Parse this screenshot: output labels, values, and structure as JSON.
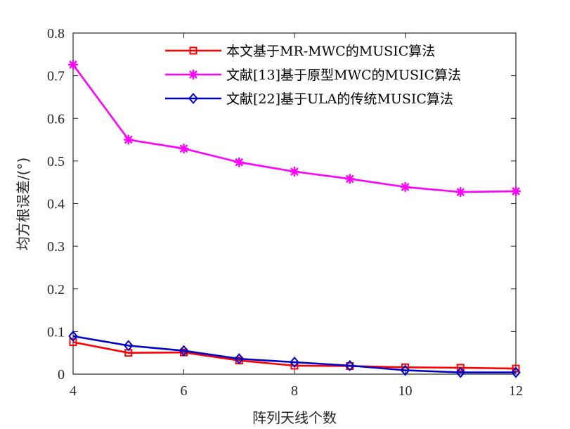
{
  "chart_data": {
    "type": "line",
    "xlabel": "阵列天线个数",
    "ylabel": "均方根误差/(°)",
    "xlim": [
      4,
      12
    ],
    "ylim": [
      0,
      0.8
    ],
    "xticks": [
      4,
      6,
      8,
      10,
      12
    ],
    "yticks": [
      0,
      0.1,
      0.2,
      0.3,
      0.4,
      0.5,
      0.6,
      0.7,
      0.8
    ],
    "xtick_labels": [
      "4",
      "6",
      "8",
      "10",
      "12"
    ],
    "ytick_labels": [
      "0",
      "0.1",
      "0.2",
      "0.3",
      "0.4",
      "0.5",
      "0.6",
      "0.7",
      "0.8"
    ],
    "grid": false,
    "legend_position": "top-right",
    "x": [
      4,
      5,
      6,
      7,
      8,
      9,
      10,
      11,
      12
    ],
    "series": [
      {
        "name": "本文基于MR-MWC的MUSIC算法",
        "color": "#ff0000",
        "marker": "square",
        "values": [
          0.075,
          0.05,
          0.051,
          0.032,
          0.02,
          0.019,
          0.016,
          0.015,
          0.013
        ]
      },
      {
        "name": "文献[13]基于原型MWC的MUSIC算法",
        "color": "#ff00ff",
        "marker": "star",
        "values": [
          0.726,
          0.55,
          0.529,
          0.497,
          0.475,
          0.458,
          0.439,
          0.427,
          0.429
        ]
      },
      {
        "name": "文献[22]基于ULA的传统MUSIC算法",
        "color": "#0000cc",
        "marker": "diamond",
        "values": [
          0.089,
          0.067,
          0.055,
          0.036,
          0.028,
          0.02,
          0.009,
          0.004,
          0.004
        ]
      }
    ]
  }
}
